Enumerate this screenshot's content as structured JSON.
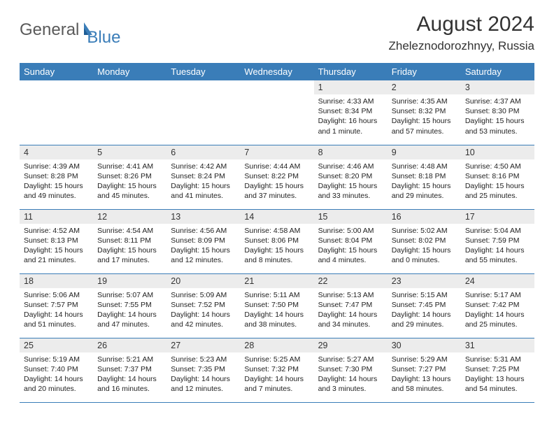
{
  "brand": {
    "general": "General",
    "blue": "Blue",
    "general_color": "#5a5a5a",
    "blue_color": "#3a7db8"
  },
  "title": {
    "month_year": "August 2024",
    "location": "Zheleznodorozhnyy, Russia"
  },
  "theme": {
    "header_bg": "#3a7db8",
    "header_fg": "#ffffff",
    "daynum_bg": "#ececec",
    "row_border": "#3a7db8",
    "text_color": "#222222"
  },
  "days_of_week": [
    "Sunday",
    "Monday",
    "Tuesday",
    "Wednesday",
    "Thursday",
    "Friday",
    "Saturday"
  ],
  "leading_blanks": 4,
  "cells": [
    {
      "n": "1",
      "sr": "4:33 AM",
      "ss": "8:34 PM",
      "dl": "16 hours and 1 minute."
    },
    {
      "n": "2",
      "sr": "4:35 AM",
      "ss": "8:32 PM",
      "dl": "15 hours and 57 minutes."
    },
    {
      "n": "3",
      "sr": "4:37 AM",
      "ss": "8:30 PM",
      "dl": "15 hours and 53 minutes."
    },
    {
      "n": "4",
      "sr": "4:39 AM",
      "ss": "8:28 PM",
      "dl": "15 hours and 49 minutes."
    },
    {
      "n": "5",
      "sr": "4:41 AM",
      "ss": "8:26 PM",
      "dl": "15 hours and 45 minutes."
    },
    {
      "n": "6",
      "sr": "4:42 AM",
      "ss": "8:24 PM",
      "dl": "15 hours and 41 minutes."
    },
    {
      "n": "7",
      "sr": "4:44 AM",
      "ss": "8:22 PM",
      "dl": "15 hours and 37 minutes."
    },
    {
      "n": "8",
      "sr": "4:46 AM",
      "ss": "8:20 PM",
      "dl": "15 hours and 33 minutes."
    },
    {
      "n": "9",
      "sr": "4:48 AM",
      "ss": "8:18 PM",
      "dl": "15 hours and 29 minutes."
    },
    {
      "n": "10",
      "sr": "4:50 AM",
      "ss": "8:16 PM",
      "dl": "15 hours and 25 minutes."
    },
    {
      "n": "11",
      "sr": "4:52 AM",
      "ss": "8:13 PM",
      "dl": "15 hours and 21 minutes."
    },
    {
      "n": "12",
      "sr": "4:54 AM",
      "ss": "8:11 PM",
      "dl": "15 hours and 17 minutes."
    },
    {
      "n": "13",
      "sr": "4:56 AM",
      "ss": "8:09 PM",
      "dl": "15 hours and 12 minutes."
    },
    {
      "n": "14",
      "sr": "4:58 AM",
      "ss": "8:06 PM",
      "dl": "15 hours and 8 minutes."
    },
    {
      "n": "15",
      "sr": "5:00 AM",
      "ss": "8:04 PM",
      "dl": "15 hours and 4 minutes."
    },
    {
      "n": "16",
      "sr": "5:02 AM",
      "ss": "8:02 PM",
      "dl": "15 hours and 0 minutes."
    },
    {
      "n": "17",
      "sr": "5:04 AM",
      "ss": "7:59 PM",
      "dl": "14 hours and 55 minutes."
    },
    {
      "n": "18",
      "sr": "5:06 AM",
      "ss": "7:57 PM",
      "dl": "14 hours and 51 minutes."
    },
    {
      "n": "19",
      "sr": "5:07 AM",
      "ss": "7:55 PM",
      "dl": "14 hours and 47 minutes."
    },
    {
      "n": "20",
      "sr": "5:09 AM",
      "ss": "7:52 PM",
      "dl": "14 hours and 42 minutes."
    },
    {
      "n": "21",
      "sr": "5:11 AM",
      "ss": "7:50 PM",
      "dl": "14 hours and 38 minutes."
    },
    {
      "n": "22",
      "sr": "5:13 AM",
      "ss": "7:47 PM",
      "dl": "14 hours and 34 minutes."
    },
    {
      "n": "23",
      "sr": "5:15 AM",
      "ss": "7:45 PM",
      "dl": "14 hours and 29 minutes."
    },
    {
      "n": "24",
      "sr": "5:17 AM",
      "ss": "7:42 PM",
      "dl": "14 hours and 25 minutes."
    },
    {
      "n": "25",
      "sr": "5:19 AM",
      "ss": "7:40 PM",
      "dl": "14 hours and 20 minutes."
    },
    {
      "n": "26",
      "sr": "5:21 AM",
      "ss": "7:37 PM",
      "dl": "14 hours and 16 minutes."
    },
    {
      "n": "27",
      "sr": "5:23 AM",
      "ss": "7:35 PM",
      "dl": "14 hours and 12 minutes."
    },
    {
      "n": "28",
      "sr": "5:25 AM",
      "ss": "7:32 PM",
      "dl": "14 hours and 7 minutes."
    },
    {
      "n": "29",
      "sr": "5:27 AM",
      "ss": "7:30 PM",
      "dl": "14 hours and 3 minutes."
    },
    {
      "n": "30",
      "sr": "5:29 AM",
      "ss": "7:27 PM",
      "dl": "13 hours and 58 minutes."
    },
    {
      "n": "31",
      "sr": "5:31 AM",
      "ss": "7:25 PM",
      "dl": "13 hours and 54 minutes."
    }
  ],
  "labels": {
    "sunrise": "Sunrise:",
    "sunset": "Sunset:",
    "daylight": "Daylight:"
  }
}
